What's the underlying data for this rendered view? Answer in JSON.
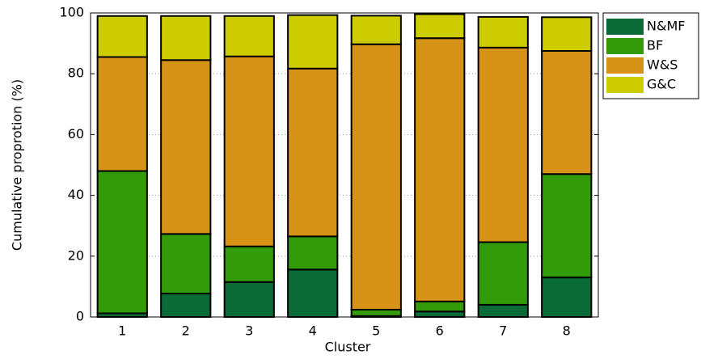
{
  "chart_data": {
    "type": "stacked_bar",
    "x_label": "Cluster",
    "y_label": "Cumulative proprotion (%)",
    "categories": [
      "1",
      "2",
      "3",
      "4",
      "5",
      "6",
      "7",
      "8"
    ],
    "series": [
      {
        "name": "N&MF",
        "color": "#0b6b38",
        "values": [
          1.2,
          7.7,
          11.5,
          15.6,
          0.3,
          1.8,
          4.0,
          13.0
        ]
      },
      {
        "name": "BF",
        "color": "#339a0a",
        "values": [
          46.8,
          19.6,
          11.7,
          10.9,
          2.1,
          3.3,
          20.6,
          34.0
        ]
      },
      {
        "name": "W&S",
        "color": "#d79318",
        "values": [
          37.5,
          57.2,
          62.5,
          55.2,
          87.3,
          86.6,
          64.0,
          40.5
        ]
      },
      {
        "name": "G&C",
        "color": "#cccc00",
        "values": [
          13.5,
          14.5,
          13.3,
          17.6,
          9.4,
          7.9,
          10.1,
          11.1
        ]
      }
    ],
    "ylim": [
      0,
      100
    ],
    "yticks": [
      0,
      20,
      40,
      60,
      80,
      100
    ],
    "grid": true,
    "legend": "outside-top-right"
  }
}
